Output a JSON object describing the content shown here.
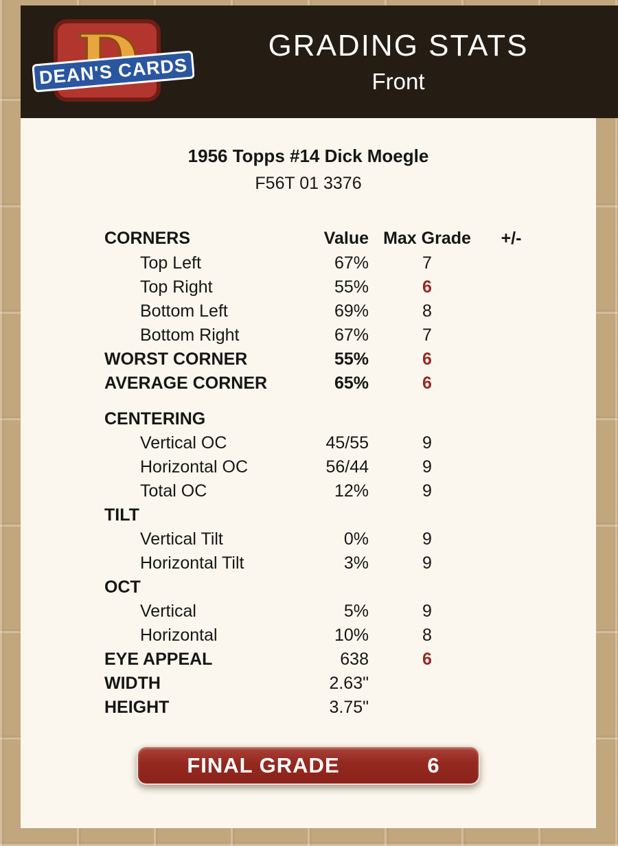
{
  "colors": {
    "header_bg": "#251c14",
    "page_bg": "#c1a67e",
    "panel_bg": "#fbf7ee",
    "accent_red": "#952b24",
    "logo_red": "#b2362e",
    "logo_blue": "#2a56a0",
    "logo_gold": "#e9a63e"
  },
  "header": {
    "title": "GRADING STATS",
    "subtitle": "Front",
    "logo": {
      "brand": "DEAN'S CARDS",
      "monogram": "D"
    }
  },
  "card": {
    "title": "1956 Topps #14 Dick Moegle",
    "code": "F56T 01 3376"
  },
  "table": {
    "columns": {
      "section": "CORNERS",
      "value": "Value",
      "max_grade": "Max Grade",
      "plus_minus": "+/-"
    },
    "rows": [
      {
        "label": "Top Left",
        "value": "67%",
        "grade": "7",
        "indent": true
      },
      {
        "label": "Top Right",
        "value": "55%",
        "grade": "6",
        "indent": true,
        "grade_red": true
      },
      {
        "label": "Bottom Left",
        "value": "69%",
        "grade": "8",
        "indent": true
      },
      {
        "label": "Bottom Right",
        "value": "67%",
        "grade": "7",
        "indent": true
      },
      {
        "label": "WORST CORNER",
        "value": "55%",
        "grade": "6",
        "bold": true,
        "value_bold": true,
        "grade_red": true
      },
      {
        "label": "AVERAGE CORNER",
        "value": "65%",
        "grade": "6",
        "bold": true,
        "value_bold": true,
        "grade_red": true
      },
      {
        "spacer": true
      },
      {
        "label": "CENTERING",
        "bold": true
      },
      {
        "label": "Vertical OC",
        "value": "45/55",
        "grade": "9",
        "indent": true
      },
      {
        "label": "Horizontal OC",
        "value": "56/44",
        "grade": "9",
        "indent": true
      },
      {
        "label": "Total OC",
        "value": "12%",
        "grade": "9",
        "indent": true
      },
      {
        "label": "TILT",
        "bold": true
      },
      {
        "label": "Vertical Tilt",
        "value": "0%",
        "grade": "9",
        "indent": true
      },
      {
        "label": "Horizontal Tilt",
        "value": "3%",
        "grade": "9",
        "indent": true
      },
      {
        "label": "OCT",
        "bold": true
      },
      {
        "label": "Vertical",
        "value": "5%",
        "grade": "9",
        "indent": true
      },
      {
        "label": "Horizontal",
        "value": "10%",
        "grade": "8",
        "indent": true
      },
      {
        "label": "EYE APPEAL",
        "value": "638",
        "grade": "6",
        "bold": true,
        "grade_red": true
      },
      {
        "label": "WIDTH",
        "value": "2.63\"",
        "bold": true
      },
      {
        "label": "HEIGHT",
        "value": "3.75\"",
        "bold": true
      }
    ]
  },
  "final_grade": {
    "label": "FINAL GRADE",
    "value": "6"
  }
}
